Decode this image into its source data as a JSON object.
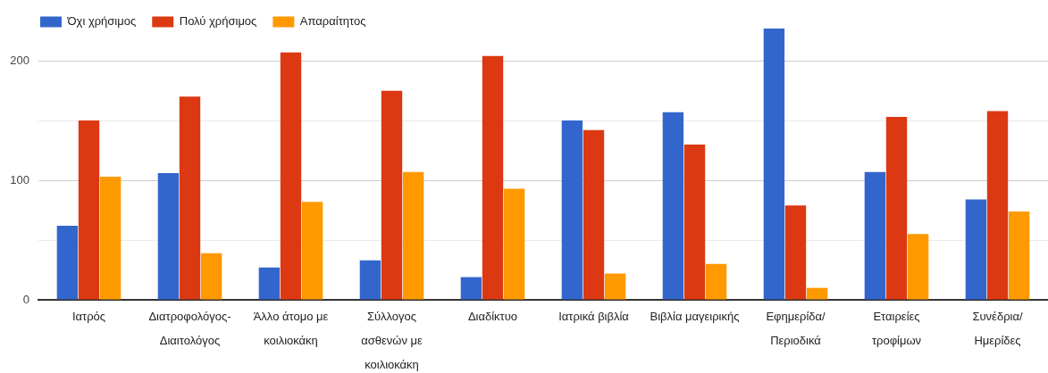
{
  "chart_data": {
    "type": "bar",
    "categories": [
      "Ιατρός",
      "Διατροφολόγος-Διαιτολόγος",
      "Άλλο άτομο με κοιλιοκάκη",
      "Σύλλογος ασθενών με κοιλιοκάκη",
      "Διαδίκτυο",
      "Ιατρικά βιβλία",
      "Βιβλία μαγειρικής",
      "Εφημερίδα/Περιοδικά",
      "Εταιρείες τροφίμων",
      "Συνέδρια/Ημερίδες"
    ],
    "series": [
      {
        "name": "Όχι χρήσιμος",
        "color": "#3366cc",
        "values": [
          62,
          106,
          27,
          33,
          19,
          150,
          157,
          227,
          107,
          84
        ]
      },
      {
        "name": "Πολύ χρήσιμος",
        "color": "#dc3912",
        "values": [
          150,
          170,
          207,
          175,
          204,
          142,
          130,
          79,
          153,
          158
        ]
      },
      {
        "name": "Απαραίτητος",
        "color": "#ff9900",
        "values": [
          103,
          39,
          82,
          107,
          93,
          22,
          30,
          10,
          55,
          74
        ]
      }
    ],
    "ylim": [
      0,
      227
    ],
    "yticks": [
      0,
      {
        "value": 50,
        "label": null
      },
      100,
      {
        "value": 150,
        "label": null
      },
      200
    ],
    "grid": "y",
    "legend": "top left"
  }
}
